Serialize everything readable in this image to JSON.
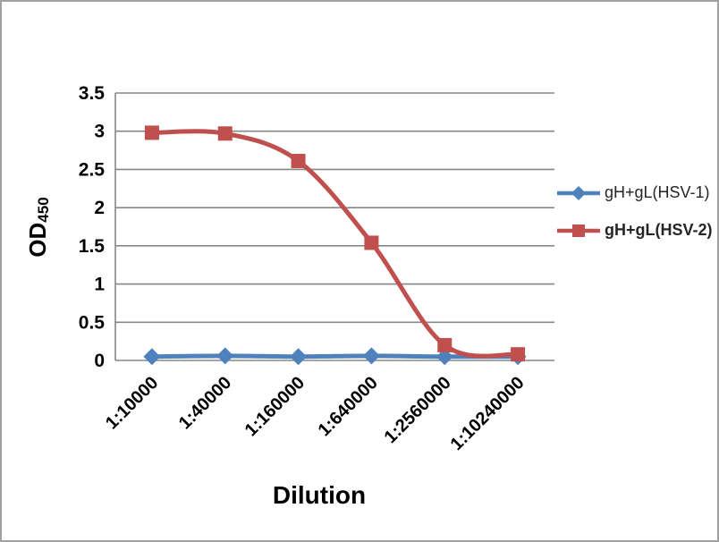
{
  "frame": {
    "background": "#ffffff",
    "border_color": "#a1a1a1"
  },
  "colors": {
    "gridline": "#878787",
    "axis_line": "#878787",
    "tick_text": "#000000",
    "legend_text": "#262626"
  },
  "chart_data": {
    "type": "line",
    "title": "",
    "xlabel": "Dilution",
    "ylabel": "OD",
    "ylabel_subscript": "450",
    "categories": [
      "1:10000",
      "1:40000",
      "1:160000",
      "1:640000",
      "1:2560000",
      "1:10240000"
    ],
    "series": [
      {
        "name": "gH+gL(HSV-1)",
        "color": "#4f81bd",
        "marker": "diamond",
        "values": [
          0.05,
          0.06,
          0.05,
          0.06,
          0.05,
          0.05
        ],
        "legend_bold": false
      },
      {
        "name": "gH+gL(HSV-2)",
        "color": "#c0504d",
        "marker": "square",
        "values": [
          2.98,
          2.97,
          2.61,
          1.54,
          0.2,
          0.08
        ],
        "legend_bold": true
      }
    ],
    "ylim": [
      0,
      3.5
    ],
    "ytick_step": 0.5,
    "yticks": [
      "0",
      "0.5",
      "1",
      "1.5",
      "2",
      "2.5",
      "3",
      "3.5"
    ],
    "grid": true,
    "smooth_lines": true,
    "legend_position": "right"
  }
}
